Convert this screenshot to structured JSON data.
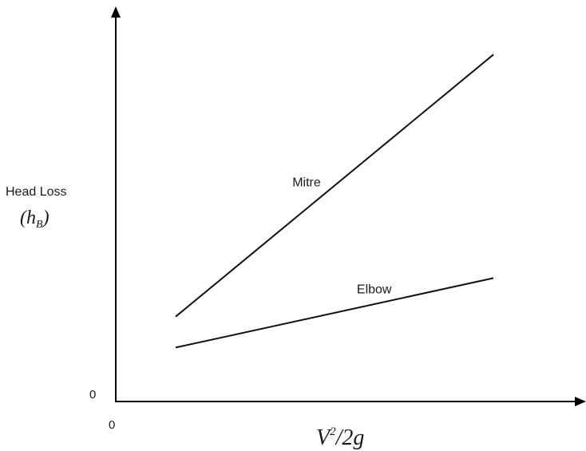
{
  "chart_data": {
    "type": "line",
    "title": "",
    "ylabel": "Head Loss",
    "ylabel_symbol": {
      "base": "h",
      "sub": "B"
    },
    "xlabel": {
      "base": "V",
      "sup": "2",
      "rest": "/2g"
    },
    "x_origin_label": "0",
    "y_origin_label": "0",
    "xlim": [
      0,
      100
    ],
    "ylim": [
      0,
      100
    ],
    "grid": false,
    "legend": "none",
    "series": [
      {
        "name": "Mitre",
        "x": [
          13,
          82
        ],
        "y": [
          22,
          90
        ]
      },
      {
        "name": "Elbow",
        "x": [
          13,
          82
        ],
        "y": [
          14,
          32
        ]
      }
    ]
  }
}
